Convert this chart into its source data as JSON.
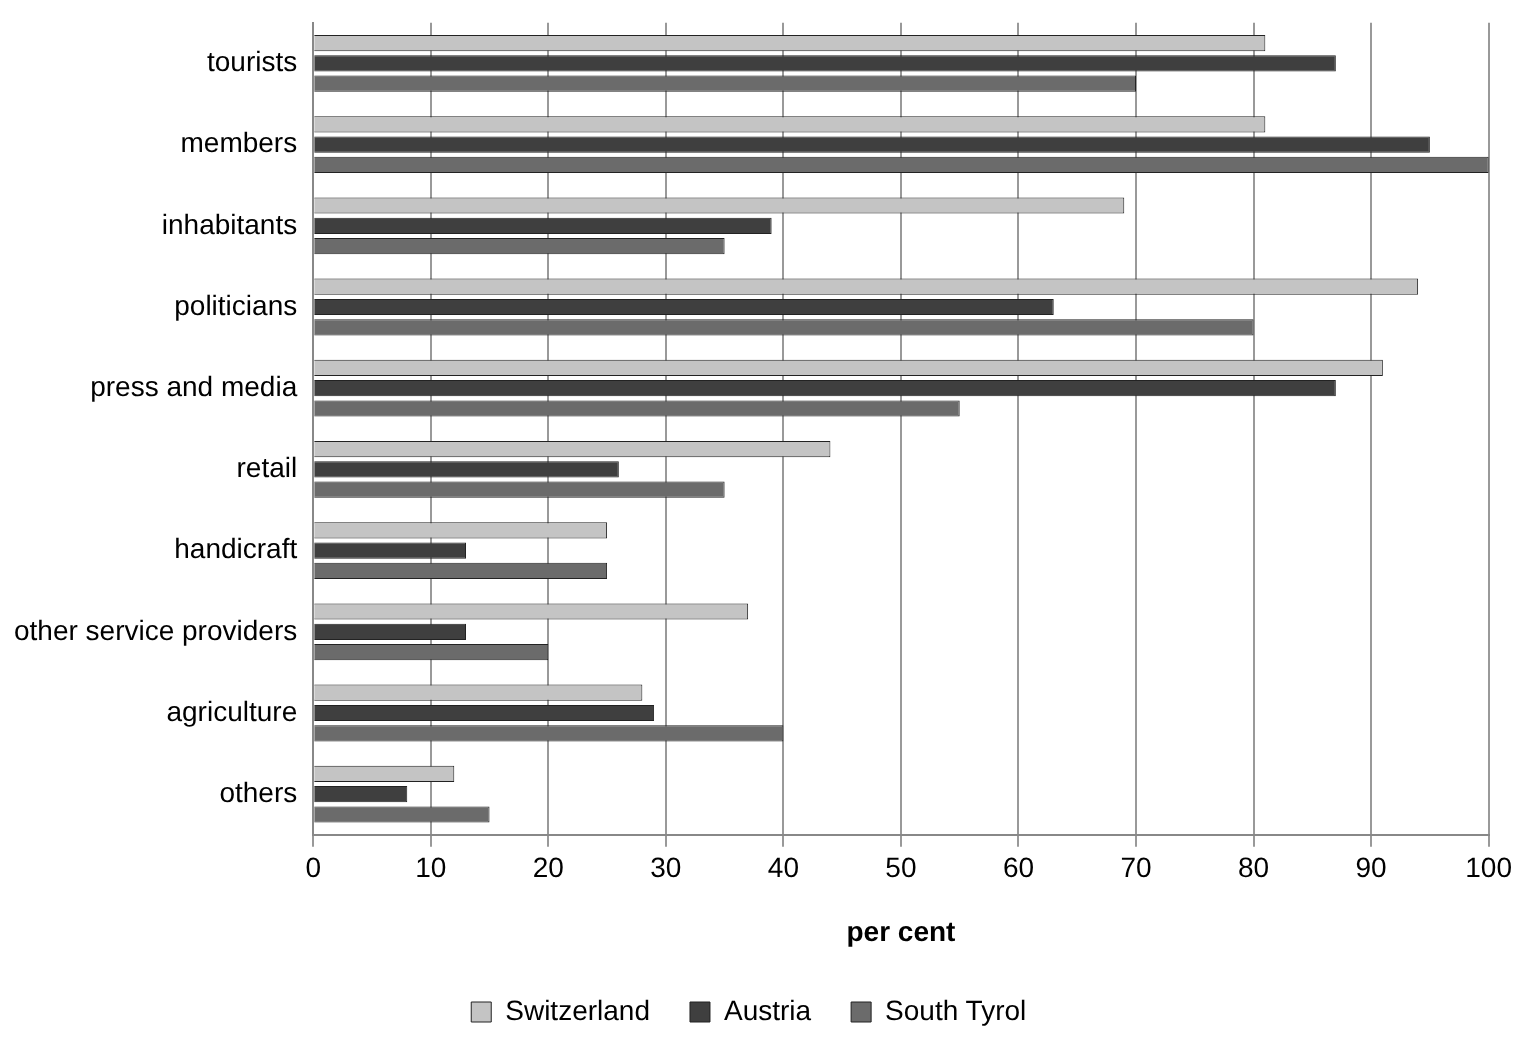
{
  "chart_data": {
    "type": "bar",
    "orientation": "horizontal",
    "xlabel": "per cent",
    "categories": [
      "tourists",
      "members",
      "inhabitants",
      "politicians",
      "press and media",
      "retail",
      "handicraft",
      "other service providers",
      "agriculture",
      "others"
    ],
    "series": [
      {
        "name": "Switzerland",
        "color": "#c4c4c4",
        "values": [
          81,
          81,
          69,
          94,
          91,
          44,
          25,
          37,
          28,
          12
        ]
      },
      {
        "name": "Austria",
        "color": "#3f3f3f",
        "values": [
          87,
          95,
          39,
          63,
          87,
          26,
          13,
          13,
          29,
          8
        ]
      },
      {
        "name": "South Tyrol",
        "color": "#6b6b6b",
        "values": [
          70,
          100,
          35,
          80,
          55,
          35,
          25,
          20,
          40,
          15
        ]
      }
    ],
    "xlim": [
      0,
      100
    ],
    "xticks": [
      0,
      10,
      20,
      30,
      40,
      50,
      60,
      70,
      80,
      90,
      100
    ],
    "grid": "x",
    "legend": "bottom"
  }
}
